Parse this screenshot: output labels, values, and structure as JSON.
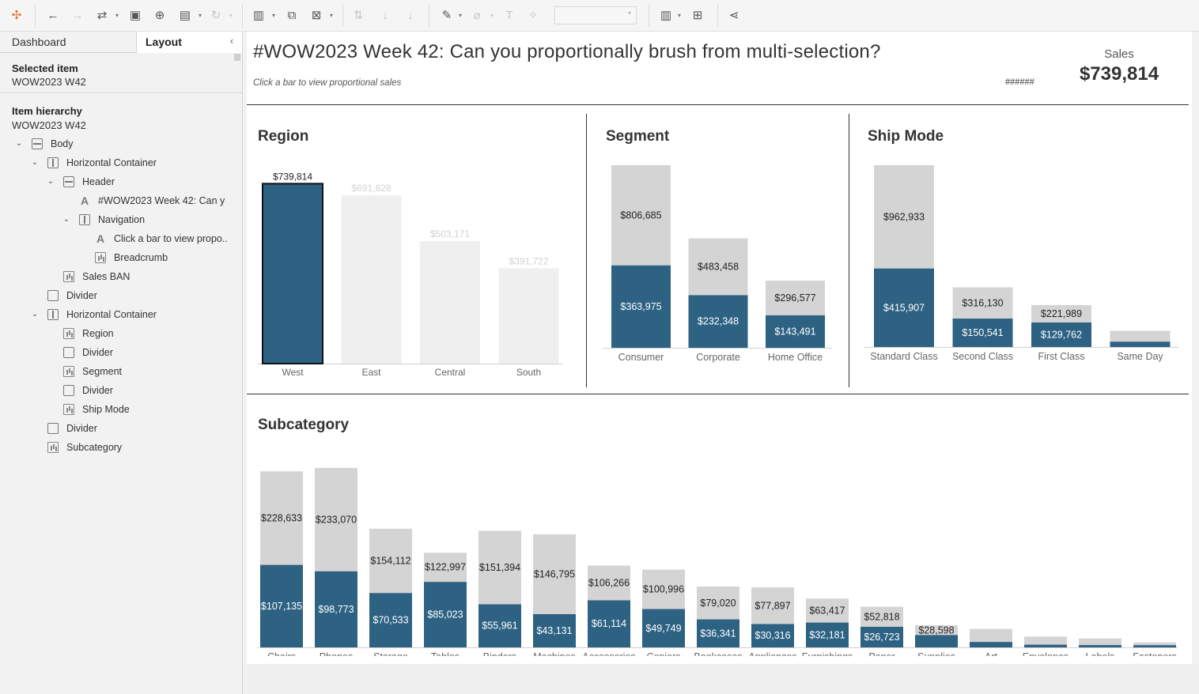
{
  "panel": {
    "tabs": {
      "dashboard": "Dashboard",
      "layout": "Layout"
    },
    "collapse_glyph": "‹",
    "selected_item_title": "Selected item",
    "selected_item_value": "WOW2023 W42",
    "hierarchy_title": "Item hierarchy",
    "hierarchy_value": "WOW2023 W42",
    "tree": [
      {
        "label": "Body",
        "icon": "vertical-container-icon",
        "caret": true
      },
      {
        "label": "Horizontal Container",
        "icon": "horizontal-container-icon",
        "caret": true
      },
      {
        "label": "Header",
        "icon": "vertical-container-icon",
        "caret": true
      },
      {
        "label": "#WOW2023 Week 42: Can y",
        "icon": "text-icon",
        "caret": false
      },
      {
        "label": "Navigation",
        "icon": "horizontal-container-icon",
        "caret": true
      },
      {
        "label": "Click a bar to view propo..",
        "icon": "text-icon",
        "caret": false
      },
      {
        "label": "Breadcrumb",
        "icon": "sheet-icon",
        "caret": false
      },
      {
        "label": "Sales BAN",
        "icon": "sheet-icon",
        "caret": false
      },
      {
        "label": "Divider",
        "icon": "blank-icon",
        "caret": false
      },
      {
        "label": "Horizontal Container",
        "icon": "horizontal-container-icon",
        "caret": true
      },
      {
        "label": "Region",
        "icon": "sheet-icon",
        "caret": false
      },
      {
        "label": "Divider",
        "icon": "blank-icon",
        "caret": false
      },
      {
        "label": "Segment",
        "icon": "sheet-icon",
        "caret": false
      },
      {
        "label": "Divider",
        "icon": "blank-icon",
        "caret": false
      },
      {
        "label": "Ship Mode",
        "icon": "sheet-icon",
        "caret": false
      },
      {
        "label": "Divider",
        "icon": "blank-icon",
        "caret": false
      },
      {
        "label": "Subcategory",
        "icon": "sheet-icon",
        "caret": false
      }
    ]
  },
  "toolbar": {
    "icons": [
      "tableau-logo-icon",
      "undo-icon",
      "redo-icon",
      "replay-icon",
      "save-icon",
      "new-data-source-icon",
      "paste-data-icon",
      "refresh-icon",
      "new-worksheet-icon",
      "duplicate-sheet-icon",
      "clear-sheet-icon",
      "swap-axes-icon",
      "sort-ascending-icon",
      "sort-descending-icon",
      "highlight-icon",
      "group-icon",
      "labels-icon",
      "fix-axes-icon",
      "show-me-icon",
      "presentation-icon",
      "share-icon"
    ]
  },
  "dashboard": {
    "title": "#WOW2023 Week 42: Can you proportionally brush from multi-selection?",
    "subtitle": "Click a bar to view proportional sales",
    "breadcrumb": "######",
    "ban_label": "Sales",
    "ban_value": "$739,814",
    "colors": {
      "selected": "#2e6283",
      "total": "#d4d4d4",
      "faded": "#efefef",
      "selected_border": "#111111"
    }
  },
  "chart_data": [
    {
      "type": "bar",
      "title": "Region",
      "categories": [
        "West",
        "East",
        "Central",
        "South"
      ],
      "values": [
        739814,
        691828,
        503171,
        391722
      ],
      "labels": [
        "$739,814",
        "$691,828",
        "$503,171",
        "$391,722"
      ],
      "selected": "West"
    },
    {
      "type": "bar",
      "title": "Segment",
      "categories": [
        "Consumer",
        "Corporate",
        "Home Office"
      ],
      "series": [
        {
          "values": [
            806685,
            483458,
            296577
          ],
          "labels": [
            "$806,685",
            "$483,458",
            "$296,577"
          ]
        },
        {
          "values": [
            363975,
            232348,
            143491
          ],
          "labels": [
            "$363,975",
            "$232,348",
            "$143,491"
          ]
        }
      ]
    },
    {
      "type": "bar",
      "title": "Ship Mode",
      "categories": [
        "Standard Class",
        "Second Class",
        "First Class",
        "Same Day"
      ],
      "series": [
        {
          "values": [
            962933,
            316130,
            221989,
            86000
          ],
          "labels": [
            "$962,933",
            "$316,130",
            "$221,989",
            ""
          ]
        },
        {
          "values": [
            415907,
            150541,
            129762,
            28000
          ],
          "labels": [
            "$415,907",
            "$150,541",
            "$129,762",
            ""
          ]
        }
      ]
    },
    {
      "type": "bar",
      "title": "Subcategory",
      "categories": [
        "Chairs",
        "Phones",
        "Storage",
        "Tables",
        "Binders",
        "Machines",
        "Accessories",
        "Copiers",
        "Bookcases",
        "Appliances",
        "Furnishings",
        "Paper",
        "Supplies",
        "Art",
        "Envelopes",
        "Labels",
        "Fasteners"
      ],
      "series": [
        {
          "values": [
            228633,
            233070,
            154112,
            122997,
            151394,
            146795,
            106266,
            100996,
            79020,
            77897,
            63417,
            52818,
            28598,
            24000,
            14000,
            11500,
            6500
          ],
          "labels": [
            "$228,633",
            "$233,070",
            "$154,112",
            "$122,997",
            "$151,394",
            "$146,795",
            "$106,266",
            "$100,996",
            "$79,020",
            "$77,897",
            "$63,417",
            "$52,818",
            "$28,598",
            "",
            "",
            "",
            ""
          ]
        },
        {
          "values": [
            107135,
            98773,
            70533,
            85023,
            55961,
            43131,
            61114,
            49749,
            36341,
            30316,
            32181,
            26723,
            16000,
            7000,
            3500,
            3000,
            2800
          ],
          "labels": [
            "$107,135",
            "$98,773",
            "$70,533",
            "$85,023",
            "$55,961",
            "$43,131",
            "$61,114",
            "$49,749",
            "$36,341",
            "$30,316",
            "$32,181",
            "$26,723",
            "",
            "",
            "",
            "",
            ""
          ]
        }
      ]
    }
  ]
}
